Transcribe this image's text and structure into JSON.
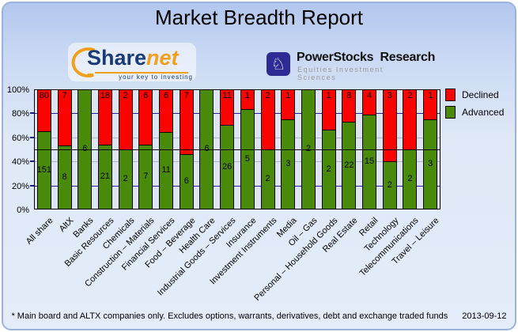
{
  "title": "Market Breadth Report",
  "logos": {
    "sharenet": {
      "name_part1": "Share",
      "name_part2": "net",
      "tagline": "your key to investing"
    },
    "powerstocks": {
      "name": "PowerStocks  Research",
      "subtitle": "Equities Investment Sciences",
      "icon": "knight-icon",
      "knight_glyph": "♘"
    }
  },
  "chart_data": {
    "type": "bar",
    "subtype": "stacked-100-percent",
    "categories": [
      "All share",
      "AltX",
      "Banks",
      "Basic Resources",
      "Chemicals",
      "Construction – Materials",
      "Financial Services",
      "Food – Beverage",
      "Health Care",
      "Industrial Goods – Services",
      "Insurance",
      "Investment Instruments",
      "Media",
      "Oil – Gas",
      "Personal – Household Goods",
      "Real Estate",
      "Retail",
      "Technology",
      "Telecommunications",
      "Travel – Leisure"
    ],
    "series": [
      {
        "name": "Declined",
        "color": "#fa0400",
        "values": [
          80,
          7,
          0,
          18,
          2,
          6,
          6,
          7,
          0,
          11,
          1,
          2,
          1,
          0,
          1,
          8,
          4,
          3,
          2,
          1
        ]
      },
      {
        "name": "Advanced",
        "color": "#4a8a0a",
        "values": [
          151,
          8,
          6,
          21,
          2,
          7,
          11,
          6,
          6,
          26,
          5,
          2,
          3,
          2,
          2,
          22,
          15,
          2,
          2,
          3
        ]
      }
    ],
    "y_ticks": [
      "0%",
      "20%",
      "40%",
      "60%",
      "80%",
      "100%"
    ],
    "ylim": [
      0,
      100
    ],
    "midline_percent": 50,
    "grid_navy_percent": [
      20,
      80
    ],
    "grid_gray_percent": [
      40,
      60
    ],
    "legend_position": "right"
  },
  "legend": {
    "items": [
      {
        "label": "Declined",
        "color": "#fa0400"
      },
      {
        "label": "Advanced",
        "color": "#4a8a0a"
      }
    ]
  },
  "footer": {
    "note": "* Main board and ALTX companies only. Excludes options, warrants, derivatives, debt and exchange traded funds",
    "date": "2013-09-12"
  }
}
